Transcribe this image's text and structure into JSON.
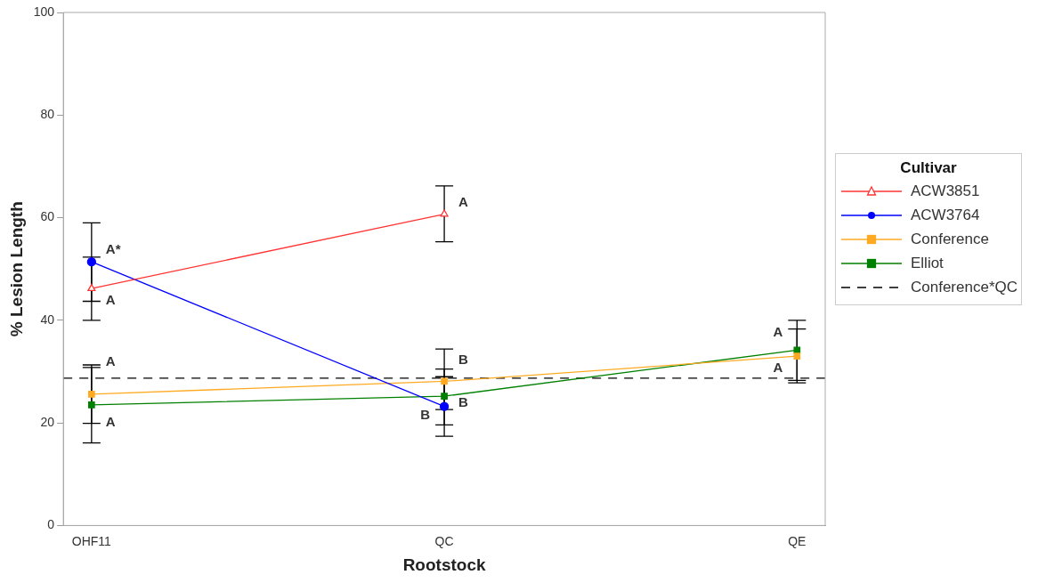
{
  "chart_data": {
    "type": "line",
    "xlabel": "Rootstock",
    "ylabel": "% Lesion Length",
    "legend_title": "Cultivar",
    "legend": "right",
    "categories": [
      "OHF11",
      "QC",
      "QE"
    ],
    "ylim": [
      0,
      100
    ],
    "yticks": [
      0,
      20,
      40,
      60,
      80,
      100
    ],
    "grid": false,
    "series": [
      {
        "name": "ACW3851",
        "color": "#ff3333",
        "marker": "triangle",
        "values": [
          46.2,
          60.7,
          null
        ],
        "errors": [
          [
            40.0,
            52.3
          ],
          [
            55.3,
            66.2
          ],
          null
        ]
      },
      {
        "name": "ACW3764",
        "color": "#0000ff",
        "marker": "circle",
        "values": [
          51.4,
          23.2,
          null
        ],
        "errors": [
          [
            43.7,
            59.0
          ],
          [
            17.4,
            29.0
          ],
          null
        ]
      },
      {
        "name": "Conference",
        "color": "#ffaa22",
        "marker": "square",
        "values": [
          25.6,
          28.1,
          33.0
        ],
        "errors": [
          [
            19.9,
            31.3
          ],
          [
            22.6,
            34.4
          ],
          [
            27.8,
            38.3
          ]
        ]
      },
      {
        "name": "Elliot",
        "color": "#008000",
        "marker": "square",
        "values": [
          23.5,
          25.2,
          34.2
        ],
        "errors": [
          [
            16.1,
            30.8
          ],
          [
            19.6,
            30.5
          ],
          [
            28.3,
            40.0
          ]
        ]
      }
    ],
    "ref_lines": [
      {
        "axis": "y",
        "value": 28.7,
        "label": "Conference*QC",
        "color": "#000000",
        "line_style": "dashed"
      }
    ],
    "annotations": [
      {
        "text": "A*",
        "x": "OHF11",
        "y": 53.7
      },
      {
        "text": "A",
        "x": "OHF11",
        "y": 43.9
      },
      {
        "text": "A",
        "x": "OHF11",
        "y": 31.8
      },
      {
        "text": "A",
        "x": "OHF11",
        "y": 20.1
      },
      {
        "text": "A",
        "x": "QC",
        "y": 62.9
      },
      {
        "text": "B",
        "x": "QC",
        "y": 32.2
      },
      {
        "text": "B",
        "x": "QC",
        "y": 23.9
      },
      {
        "text": "B",
        "x": "QC",
        "y": 21.4
      },
      {
        "text": "A",
        "x": "QE",
        "y": 37.5
      },
      {
        "text": "A",
        "x": "QE",
        "y": 30.7
      }
    ]
  }
}
